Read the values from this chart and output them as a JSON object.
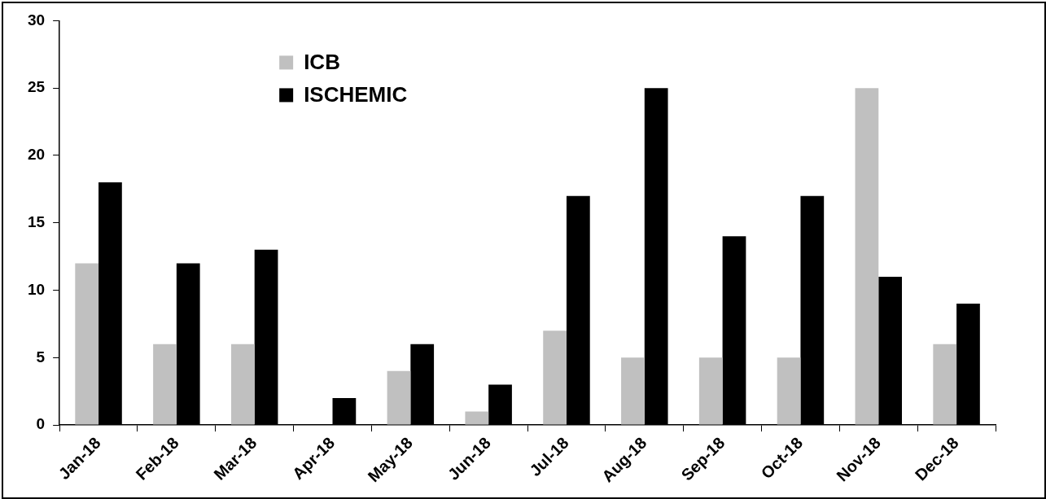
{
  "chart_data": {
    "type": "bar",
    "categories": [
      "Jan-18",
      "Feb-18",
      "Mar-18",
      "Apr-18",
      "May-18",
      "Jun-18",
      "Jul-18",
      "Aug-18",
      "Sep-18",
      "Oct-18",
      "Nov-18",
      "Dec-18"
    ],
    "series": [
      {
        "name": "ICB",
        "color": "#c0c0c0",
        "values": [
          12,
          6,
          6,
          0,
          4,
          1,
          7,
          5,
          5,
          5,
          25,
          6
        ]
      },
      {
        "name": "ISCHEMIC",
        "color": "#000000",
        "values": [
          18,
          12,
          13,
          2,
          6,
          3,
          17,
          25,
          14,
          17,
          11,
          9
        ]
      }
    ],
    "ylim": [
      0,
      30
    ],
    "yticks": [
      0,
      5,
      10,
      15,
      20,
      25,
      30
    ],
    "grid": false,
    "legend": "top left"
  }
}
